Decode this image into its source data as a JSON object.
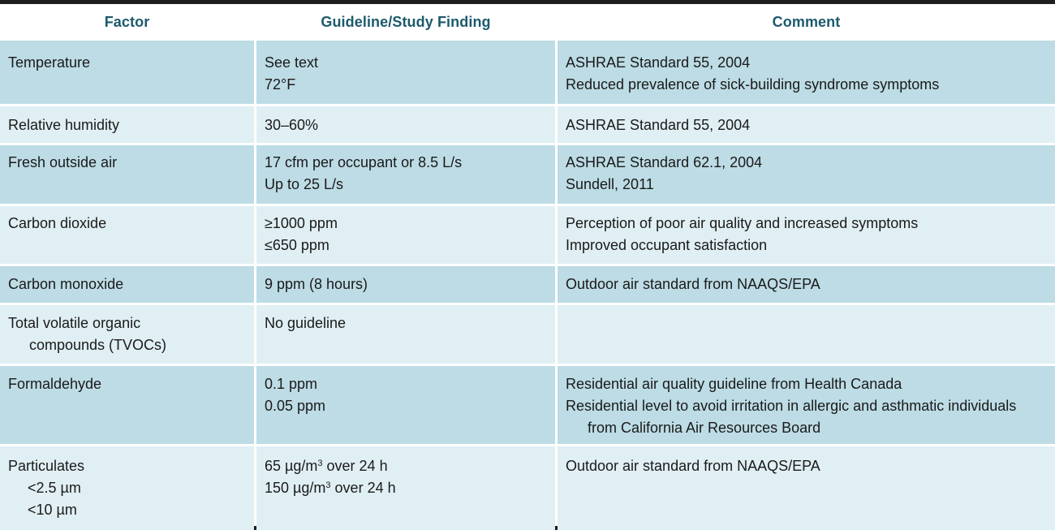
{
  "headers": {
    "factor": "Factor",
    "guideline": "Guideline/Study Finding",
    "comment": "Comment"
  },
  "rows": [
    {
      "factor": [
        "Temperature"
      ],
      "guideline": [
        "See text",
        "72°F"
      ],
      "comment": [
        "ASHRAE Standard 55, 2004",
        "Reduced prevalence of sick-building syndrome symptoms"
      ]
    },
    {
      "factor": [
        "Relative humidity"
      ],
      "guideline": [
        "30–60%"
      ],
      "comment": [
        "ASHRAE Standard 55, 2004"
      ]
    },
    {
      "factor": [
        "Fresh outside air"
      ],
      "guideline": [
        "17 cfm per occupant or 8.5 L/s",
        "Up to 25 L/s"
      ],
      "comment": [
        "ASHRAE Standard 62.1, 2004",
        "Sundell, 2011"
      ]
    },
    {
      "factor": [
        "Carbon dioxide"
      ],
      "guideline": [
        "≥1000 ppm",
        "≤650 ppm"
      ],
      "comment": [
        "Perception of poor air quality and increased symptoms",
        "Improved occupant satisfaction"
      ]
    },
    {
      "factor": [
        "Carbon monoxide"
      ],
      "guideline": [
        "9 ppm (8 hours)"
      ],
      "comment": [
        "Outdoor air standard from NAAQS/EPA"
      ]
    },
    {
      "factor": [
        "Total volatile organic",
        "compounds (TVOCs)"
      ],
      "guideline": [
        "No guideline"
      ],
      "comment": []
    },
    {
      "factor": [
        "Formaldehyde"
      ],
      "guideline": [
        "0.1 ppm",
        "0.05 ppm"
      ],
      "comment": [
        "Residential air quality guideline from Health Canada",
        "Residential level to avoid irritation in allergic and asthmatic individuals",
        "from California Air Resources Board"
      ]
    },
    {
      "factor": [
        "Particulates",
        "<2.5 µm",
        "<10 µm"
      ],
      "guideline": [
        {
          "pre": "65 µg/m",
          "sup": "3",
          "post": " over 24 h"
        },
        {
          "pre": "150 µg/m",
          "sup": "3",
          "post": " over 24 h"
        }
      ],
      "comment": [
        "Outdoor air standard from NAAQS/EPA"
      ]
    }
  ]
}
